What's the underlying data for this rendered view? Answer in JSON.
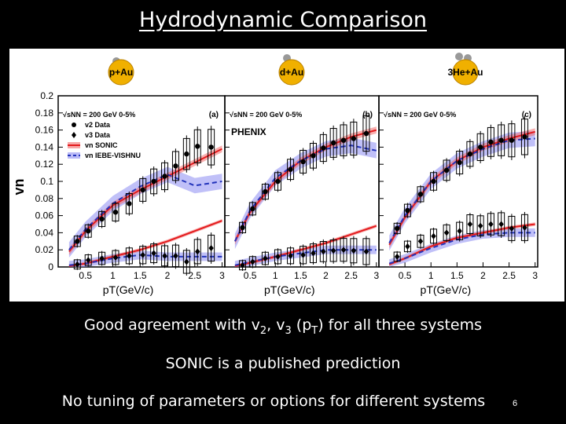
{
  "title": "Hydrodynamic Comparison",
  "page_number": "6",
  "bullets": {
    "b1": {
      "pre": "Good agreement with v",
      "s1": "2",
      "mid1": ", v",
      "s2": "3",
      "mid2": " (p",
      "s3": "T",
      "post": ") for all three systems"
    },
    "b2": "SONIC is a published prediction",
    "b3": "No tuning of parameters or options for different systems"
  },
  "colors": {
    "sonic_band": "#f26d6d",
    "sonic_line": "#e31a1c",
    "ivishnu_band": "#8c8cf2",
    "ivishnu_line": "#2233bb",
    "data": "#000000",
    "badge": "#f0b000"
  },
  "chart_data": {
    "type": "line",
    "ylabel": "vn",
    "xlabel": "pT(GeV/c)",
    "xlim": [
      0,
      3.05
    ],
    "ylim": [
      0,
      0.2
    ],
    "x_ticks": [
      "0.5",
      "1",
      "1.5",
      "2",
      "2.5",
      "3"
    ],
    "y_ticks": [
      "0",
      "0.02",
      "0.04",
      "0.06",
      "0.08",
      "0.1",
      "0.12",
      "0.14",
      "0.16",
      "0.18",
      "0.2"
    ],
    "legend": {
      "entries": [
        "v2 Data",
        "v3 Data",
        "vn SONIC",
        "vn IEBE-VISHNU"
      ]
    },
    "experiment_label": "PHENIX",
    "panels": [
      {
        "system": "p+Au",
        "label": "p+Au",
        "energy": "√sNN = 200 GeV 0-5%",
        "tag": "(a)",
        "v2_data": {
          "x": [
            0.35,
            0.55,
            0.8,
            1.05,
            1.3,
            1.55,
            1.75,
            1.95,
            2.15,
            2.35,
            2.55,
            2.8
          ],
          "y": [
            0.03,
            0.042,
            0.056,
            0.064,
            0.074,
            0.09,
            0.1,
            0.106,
            0.118,
            0.132,
            0.141,
            0.14
          ]
        },
        "v3_data": {
          "x": [
            0.35,
            0.55,
            0.8,
            1.05,
            1.3,
            1.55,
            1.75,
            1.95,
            2.15,
            2.35,
            2.55,
            2.8
          ],
          "y": [
            0.003,
            0.008,
            0.01,
            0.011,
            0.013,
            0.014,
            0.016,
            0.013,
            0.013,
            0.006,
            0.018,
            0.022
          ]
        },
        "v2_sonic": {
          "x": [
            0.2,
            0.5,
            1.0,
            1.5,
            2.0,
            2.5,
            3.0
          ],
          "y": [
            0.018,
            0.042,
            0.072,
            0.09,
            0.106,
            0.122,
            0.138
          ]
        },
        "v3_sonic": {
          "x": [
            0.2,
            0.5,
            1.0,
            1.5,
            2.0,
            2.5,
            3.0
          ],
          "y": [
            0.001,
            0.004,
            0.012,
            0.02,
            0.03,
            0.042,
            0.054
          ]
        },
        "v2_ivishnu": {
          "x": [
            0.2,
            0.5,
            1.0,
            1.5,
            2.0,
            2.5,
            3.0
          ],
          "y": [
            0.02,
            0.044,
            0.074,
            0.094,
            0.108,
            0.095,
            0.1
          ]
        },
        "v3_ivishnu": {
          "x": [
            0.2,
            0.5,
            1.0,
            1.5,
            2.0,
            2.5,
            3.0
          ],
          "y": [
            0.002,
            0.004,
            0.01,
            0.014,
            0.012,
            0.012,
            0.012
          ]
        }
      },
      {
        "system": "d+Au",
        "label": "d+Au",
        "energy": "√sNN = 200 GeV 0-5%",
        "tag": "(b)",
        "v2_data": {
          "x": [
            0.35,
            0.55,
            0.8,
            1.05,
            1.3,
            1.55,
            1.75,
            1.95,
            2.15,
            2.35,
            2.55,
            2.8
          ],
          "y": [
            0.046,
            0.068,
            0.088,
            0.1,
            0.114,
            0.123,
            0.13,
            0.139,
            0.145,
            0.148,
            0.15,
            0.156
          ]
        },
        "v3_data": {
          "x": [
            0.35,
            0.55,
            0.8,
            1.05,
            1.3,
            1.55,
            1.75,
            1.95,
            2.15,
            2.35,
            2.55,
            2.8
          ],
          "y": [
            0.002,
            0.006,
            0.01,
            0.012,
            0.013,
            0.014,
            0.016,
            0.018,
            0.019,
            0.02,
            0.019,
            0.018
          ]
        },
        "v2_sonic": {
          "x": [
            0.2,
            0.5,
            1.0,
            1.5,
            2.0,
            2.5,
            3.0
          ],
          "y": [
            0.03,
            0.064,
            0.1,
            0.124,
            0.14,
            0.152,
            0.16
          ]
        },
        "v3_sonic": {
          "x": [
            0.2,
            0.5,
            1.0,
            1.5,
            2.0,
            2.5,
            3.0
          ],
          "y": [
            0.001,
            0.005,
            0.012,
            0.02,
            0.028,
            0.038,
            0.048
          ]
        },
        "v2_ivishnu": {
          "x": [
            0.2,
            0.5,
            1.0,
            1.5,
            2.0,
            2.5,
            3.0
          ],
          "y": [
            0.03,
            0.066,
            0.104,
            0.124,
            0.138,
            0.142,
            0.136
          ]
        },
        "v3_ivishnu": {
          "x": [
            0.2,
            0.5,
            1.0,
            1.5,
            2.0,
            2.5,
            3.0
          ],
          "y": [
            0.002,
            0.006,
            0.012,
            0.016,
            0.02,
            0.02,
            0.02
          ]
        }
      },
      {
        "system": "3He+Au",
        "label": "3He+Au",
        "energy": "√sNN = 200 GeV 0-5%",
        "tag": "(c)",
        "v2_data": {
          "x": [
            0.35,
            0.55,
            0.8,
            1.05,
            1.3,
            1.55,
            1.75,
            1.95,
            2.15,
            2.35,
            2.55,
            2.8
          ],
          "y": [
            0.045,
            0.066,
            0.085,
            0.1,
            0.113,
            0.122,
            0.132,
            0.14,
            0.146,
            0.148,
            0.148,
            0.152
          ]
        },
        "v3_data": {
          "x": [
            0.35,
            0.55,
            0.8,
            1.05,
            1.3,
            1.55,
            1.75,
            1.95,
            2.15,
            2.35,
            2.55,
            2.8
          ],
          "y": [
            0.012,
            0.024,
            0.03,
            0.036,
            0.04,
            0.042,
            0.05,
            0.048,
            0.05,
            0.05,
            0.045,
            0.046
          ]
        },
        "v2_sonic": {
          "x": [
            0.2,
            0.5,
            1.0,
            1.5,
            2.0,
            2.5,
            3.0
          ],
          "y": [
            0.026,
            0.058,
            0.1,
            0.124,
            0.14,
            0.15,
            0.158
          ]
        },
        "v3_sonic": {
          "x": [
            0.2,
            0.5,
            1.0,
            1.5,
            2.0,
            2.5,
            3.0
          ],
          "y": [
            0.003,
            0.01,
            0.024,
            0.034,
            0.04,
            0.046,
            0.05
          ]
        },
        "v2_ivishnu": {
          "x": [
            0.2,
            0.5,
            1.0,
            1.5,
            2.0,
            2.5,
            3.0
          ],
          "y": [
            0.028,
            0.06,
            0.1,
            0.124,
            0.138,
            0.148,
            0.15
          ]
        },
        "v3_ivishnu": {
          "x": [
            0.2,
            0.5,
            1.0,
            1.5,
            2.0,
            2.5,
            3.0
          ],
          "y": [
            0.004,
            0.01,
            0.022,
            0.032,
            0.038,
            0.04,
            0.04
          ]
        }
      }
    ]
  }
}
